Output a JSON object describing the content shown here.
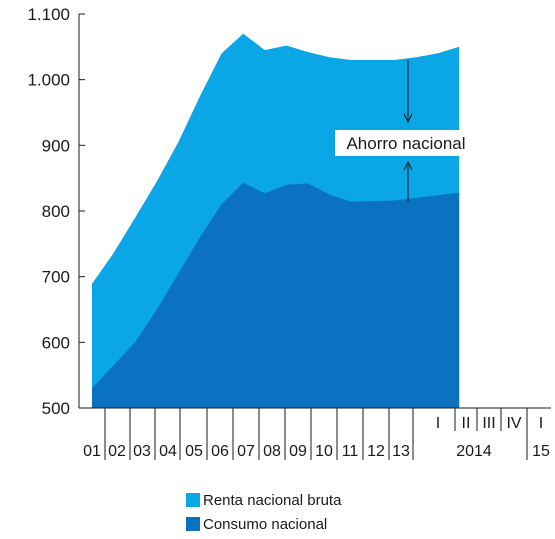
{
  "chart_data": {
    "type": "area",
    "title": "",
    "xlabel": "",
    "ylabel": "",
    "ylim": [
      500,
      1100
    ],
    "yticks": [
      500,
      600,
      700,
      800,
      900,
      1000,
      1100
    ],
    "ytick_labels": [
      "500",
      "600",
      "700",
      "800",
      "900",
      "1.000",
      "1.100"
    ],
    "categories": [
      "01",
      "02",
      "03",
      "04",
      "05",
      "06",
      "07",
      "08",
      "09",
      "10",
      "11",
      "12",
      "13",
      "I",
      "II",
      "III",
      "IV",
      "I"
    ],
    "year_labels": [
      {
        "label": "2014",
        "span": [
          13,
          16
        ]
      },
      {
        "label": "15",
        "span": [
          17,
          17
        ]
      }
    ],
    "series": [
      {
        "name": "Renta nacional bruta",
        "color": "#0aa6e6",
        "values": [
          689,
          736,
          790,
          845,
          905,
          975,
          1040,
          1070,
          1045,
          1052,
          1042,
          1034,
          1030,
          1030,
          1030,
          1034,
          1040,
          1050
        ]
      },
      {
        "name": "Consumo nacional",
        "color": "#0a72c0",
        "values": [
          530,
          565,
          600,
          650,
          705,
          760,
          810,
          843,
          827,
          840,
          842,
          825,
          814,
          815,
          816,
          820,
          824,
          828
        ]
      }
    ],
    "annotations": [
      {
        "text": "Ahorro nacional",
        "category_index": 12,
        "top_value": 1030,
        "bottom_value": 814
      }
    ],
    "legend_position": "bottom"
  }
}
